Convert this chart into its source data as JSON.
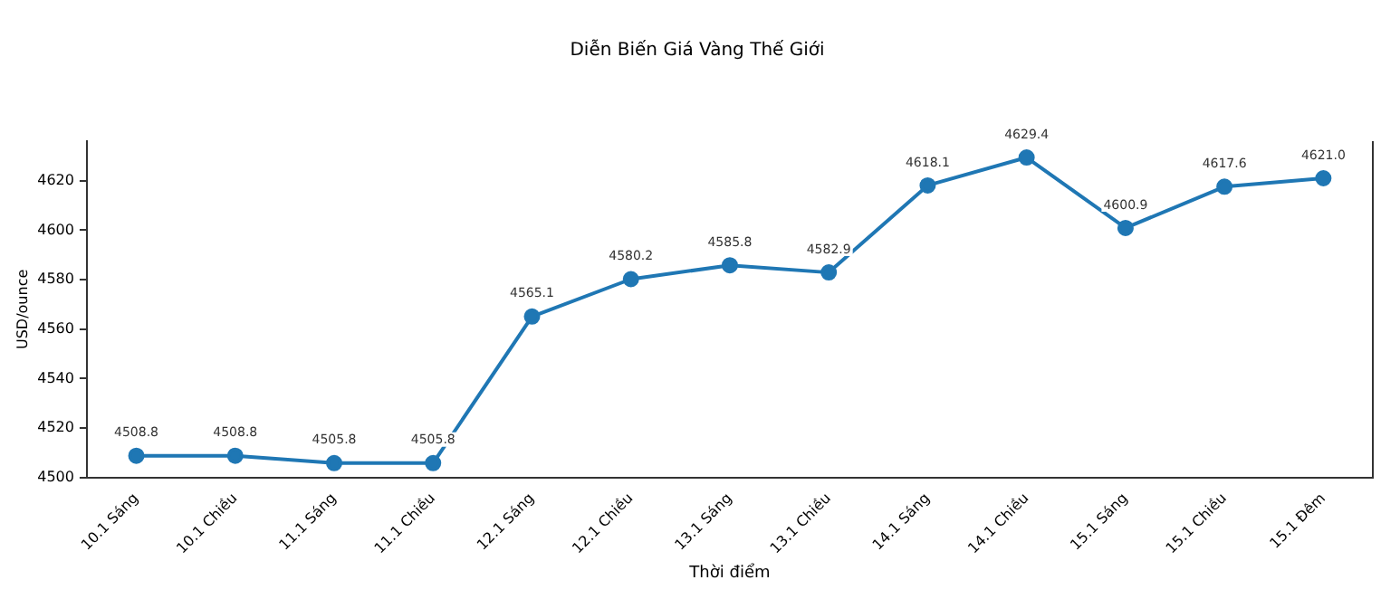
{
  "chart_data": {
    "type": "line",
    "title": "Diễn Biến Giá Vàng Thế Giới",
    "xlabel": "Thời điểm",
    "ylabel": "USD/ounce",
    "categories": [
      "10.1 Sáng",
      "10.1 Chiều",
      "11.1 Sáng",
      "11.1 Chiều",
      "12.1 Sáng",
      "12.1 Chiều",
      "13.1 Sáng",
      "13.1 Chiều",
      "14.1 Sáng",
      "14.1 Chiều",
      "15.1 Sáng",
      "15.1 Chiều",
      "15.1 Đêm"
    ],
    "series": [
      {
        "color": "#1f77b4",
        "values": [
          4508.8,
          4508.8,
          4505.8,
          4505.8,
          4565.1,
          4580.2,
          4585.8,
          4582.9,
          4618.1,
          4629.4,
          4600.9,
          4617.6,
          4621.0
        ],
        "value_labels": [
          "4508.8",
          "4508.8",
          "4505.8",
          "4505.8",
          "4565.1",
          "4580.2",
          "4585.8",
          "4582.9",
          "4618.1",
          "4629.4",
          "4600.9",
          "4617.6",
          "4621.0"
        ]
      }
    ],
    "ylim": [
      4500,
      4636
    ],
    "yticks": [
      4500,
      4520,
      4540,
      4560,
      4580,
      4600,
      4620
    ],
    "grid": false,
    "legend": false,
    "marker": "circle",
    "line_style": "solid"
  }
}
